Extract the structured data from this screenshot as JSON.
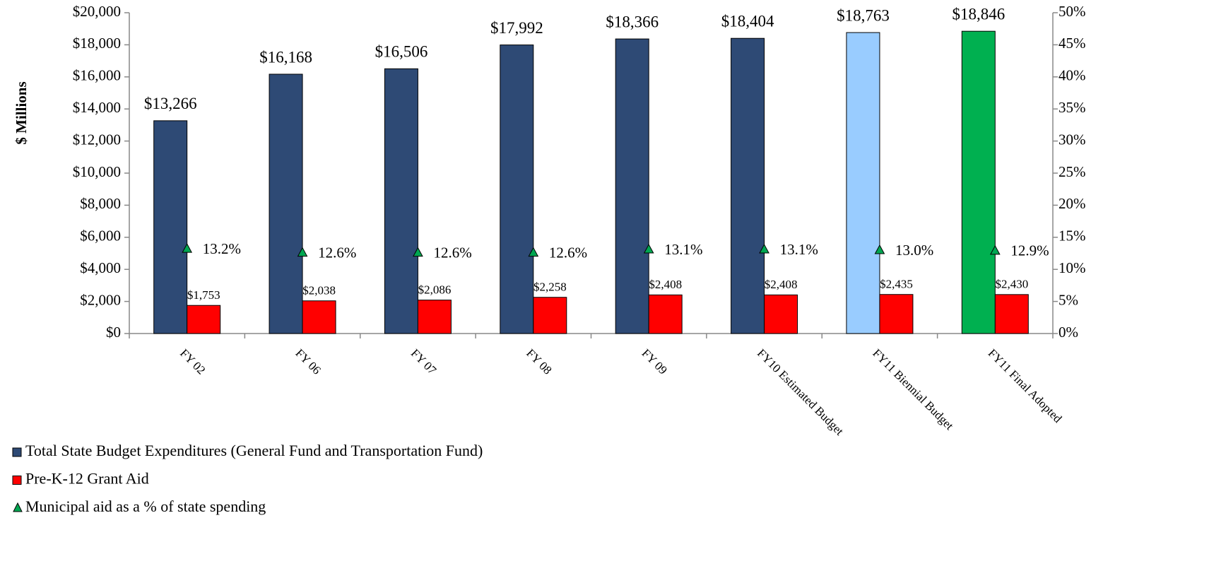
{
  "chart_data": {
    "type": "bar",
    "y_label": "$ Millions",
    "categories": [
      "FY 02",
      "FY 06",
      "FY 07",
      "FY 08",
      "FY 09",
      "FY10 Estimated Budget",
      "FY11 Biennial Budget",
      "FY11 Final Adopted"
    ],
    "series": [
      {
        "name": "Total State Budget Expenditures (General Fund and Transportation Fund)",
        "color": "#2e4a75",
        "colors": [
          "#2e4a75",
          "#2e4a75",
          "#2e4a75",
          "#2e4a75",
          "#2e4a75",
          "#2e4a75",
          "#99ccff",
          "#00b050"
        ],
        "values": [
          13266,
          16168,
          16506,
          17992,
          18366,
          18404,
          18763,
          18846
        ],
        "value_labels": [
          "$13,266",
          "$16,168",
          "$16,506",
          "$17,992",
          "$18,366",
          "$18,404",
          "$18,763",
          "$18,846"
        ]
      },
      {
        "name": "Pre-K-12 Grant Aid",
        "color": "#ff0000",
        "values": [
          1753,
          2038,
          2086,
          2258,
          2408,
          2408,
          2435,
          2430
        ],
        "value_labels": [
          "$1,753",
          "$2,038",
          "$2,086",
          "$2,258",
          "$2,408",
          "$2,408",
          "$2,435",
          "$2,430"
        ]
      },
      {
        "name": "Municipal aid as a % of state spending",
        "color": "#00a651",
        "type": "scatter",
        "marker": "triangle",
        "axis": "y2",
        "values": [
          13.2,
          12.6,
          12.6,
          12.6,
          13.1,
          13.1,
          13.0,
          12.9
        ],
        "value_labels": [
          "13.2%",
          "12.6%",
          "12.6%",
          "12.6%",
          "13.1%",
          "13.1%",
          "13.0%",
          "12.9%"
        ]
      }
    ],
    "ylim": [
      0,
      20000
    ],
    "yticks": [
      {
        "value": 0,
        "label": "$0"
      },
      {
        "value": 2000,
        "label": "$2,000"
      },
      {
        "value": 4000,
        "label": "$4,000"
      },
      {
        "value": 6000,
        "label": "$6,000"
      },
      {
        "value": 8000,
        "label": "$8,000"
      },
      {
        "value": 10000,
        "label": "$10,000"
      },
      {
        "value": 12000,
        "label": "$12,000"
      },
      {
        "value": 14000,
        "label": "$14,000"
      },
      {
        "value": 16000,
        "label": "$16,000"
      },
      {
        "value": 18000,
        "label": "$18,000"
      },
      {
        "value": 20000,
        "label": "$20,000"
      }
    ],
    "y2lim": [
      0,
      50
    ],
    "y2ticks": [
      {
        "value": 0,
        "label": "0%"
      },
      {
        "value": 5,
        "label": "5%"
      },
      {
        "value": 10,
        "label": "10%"
      },
      {
        "value": 15,
        "label": "15%"
      },
      {
        "value": 20,
        "label": "20%"
      },
      {
        "value": 25,
        "label": "25%"
      },
      {
        "value": 30,
        "label": "30%"
      },
      {
        "value": 35,
        "label": "35%"
      },
      {
        "value": 40,
        "label": "40%"
      },
      {
        "value": 45,
        "label": "45%"
      },
      {
        "value": 50,
        "label": "50%"
      }
    ],
    "grid": false,
    "legend": "bottom-left"
  }
}
